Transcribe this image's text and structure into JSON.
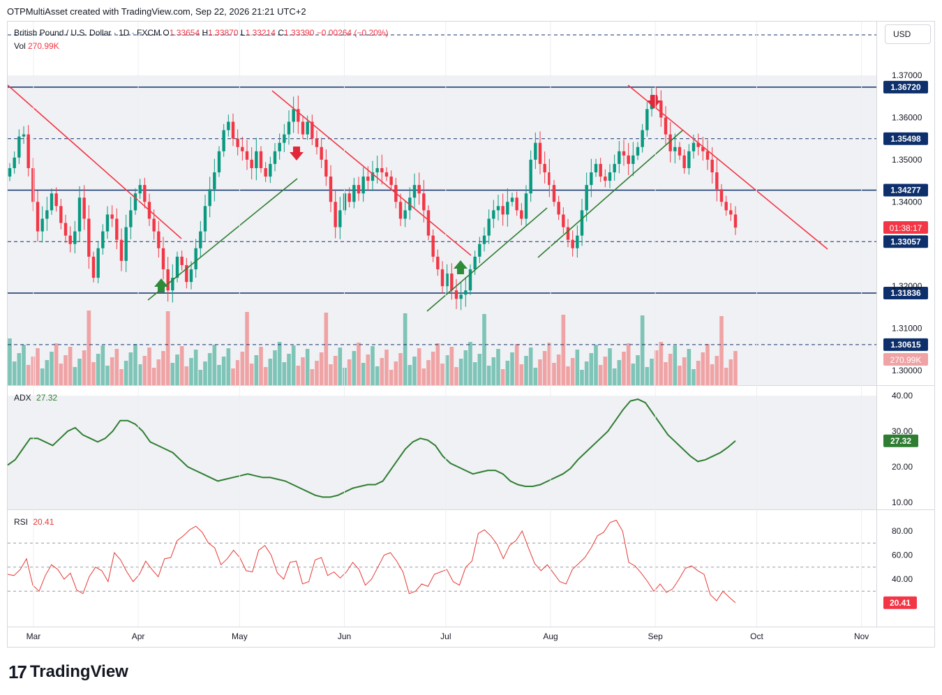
{
  "header": {
    "created_by": "OTPMultiAsset created with TradingView.com, Sep 22, 2026 21:21 UTC+2"
  },
  "legend": {
    "symbol": "British Pound / U.S. Dollar · 1D · FXCM",
    "open_label": "O",
    "open": "1.33654",
    "high_label": "H",
    "high": "1.33870",
    "low_label": "L",
    "low": "1.33214",
    "close_label": "C",
    "close": "1.33390",
    "change": "−0.00264 (−0.20%)",
    "vol_label": "Vol",
    "vol": "270.99K"
  },
  "currency": "USD",
  "adx": {
    "label": "ADX",
    "value": "27.32"
  },
  "rsi": {
    "label": "RSI",
    "value": "20.41"
  },
  "footer": {
    "brand": "TradingView"
  },
  "colors": {
    "up": "#089981",
    "down": "#f23645",
    "trend_down": "#f23645",
    "trend_up": "#2e7d32",
    "level": "#0d2f6b",
    "adx": "#2e7d32",
    "rsi": "#e53935",
    "vol_up": "#7ec4b7",
    "vol_down": "#f0a3a4"
  },
  "chart_data": [
    {
      "type": "candlestick",
      "panel": "price",
      "ylim": [
        1.296,
        1.377
      ],
      "y_ticks": [
        "1.30000",
        "1.31000",
        "1.32000",
        "1.34000",
        "1.35000",
        "1.36000",
        "1.37000"
      ],
      "x_ticks": [
        "Mar",
        "Apr",
        "May",
        "Jun",
        "Jul",
        "Aug",
        "Sep",
        "Oct",
        "Nov"
      ],
      "x_tick_dates": [
        "2026-03-01",
        "2026-04-01",
        "2026-05-01",
        "2026-06-01",
        "2026-07-01",
        "2026-08-01",
        "2026-09-01",
        "2026-10-01",
        "2026-11-01"
      ],
      "x_range": [
        "2026-02-22",
        "2026-11-05"
      ],
      "closes": [
        1.348,
        1.3505,
        1.3555,
        1.356,
        1.348,
        1.34,
        1.333,
        1.336,
        1.338,
        1.342,
        1.339,
        1.335,
        1.332,
        1.33,
        1.333,
        1.341,
        1.336,
        1.327,
        1.322,
        1.329,
        1.333,
        1.337,
        1.336,
        1.331,
        1.326,
        1.334,
        1.338,
        1.342,
        1.344,
        1.34,
        1.336,
        1.333,
        1.329,
        1.324,
        1.319,
        1.322,
        1.327,
        1.325,
        1.321,
        1.324,
        1.329,
        1.333,
        1.339,
        1.343,
        1.347,
        1.352,
        1.357,
        1.359,
        1.355,
        1.353,
        1.352,
        1.35,
        1.348,
        1.352,
        1.348,
        1.346,
        1.349,
        1.352,
        1.354,
        1.356,
        1.359,
        1.362,
        1.359,
        1.356,
        1.359,
        1.355,
        1.353,
        1.35,
        1.346,
        1.34,
        1.334,
        1.338,
        1.342,
        1.34,
        1.344,
        1.342,
        1.346,
        1.345,
        1.347,
        1.348,
        1.347,
        1.346,
        1.344,
        1.34,
        1.336,
        1.338,
        1.341,
        1.344,
        1.342,
        1.338,
        1.332,
        1.327,
        1.324,
        1.32,
        1.323,
        1.319,
        1.317,
        1.318,
        1.319,
        1.324,
        1.327,
        1.33,
        1.332,
        1.336,
        1.338,
        1.339,
        1.337,
        1.34,
        1.341,
        1.338,
        1.336,
        1.342,
        1.35,
        1.354,
        1.349,
        1.347,
        1.344,
        1.34,
        1.337,
        1.334,
        1.331,
        1.329,
        1.332,
        1.338,
        1.344,
        1.347,
        1.349,
        1.346,
        1.345,
        1.347,
        1.349,
        1.352,
        1.351,
        1.349,
        1.351,
        1.353,
        1.357,
        1.362,
        1.365,
        1.364,
        1.36,
        1.356,
        1.352,
        1.353,
        1.351,
        1.348,
        1.352,
        1.354,
        1.353,
        1.352,
        1.35,
        1.347,
        1.343,
        1.34,
        1.338,
        1.337,
        1.3339
      ],
      "levels": [
        1.3672,
        1.35498,
        1.34277,
        1.33057,
        1.31836,
        1.30615
      ],
      "level_labels": [
        "1.36720",
        "1.35498",
        "1.34277",
        "1.33057",
        "1.31836",
        "1.30615"
      ],
      "countdown": "01:38:17",
      "volume_label": "270.99K"
    },
    {
      "type": "line",
      "panel": "adx",
      "name": "ADX",
      "ylim": [
        8,
        42
      ],
      "y_ticks": [
        "10.00",
        "20.00",
        "30.00",
        "40.00"
      ],
      "values": [
        20.5,
        22,
        25,
        28,
        28,
        27,
        26,
        28,
        30,
        31,
        29,
        28,
        27,
        28,
        30,
        33,
        33,
        32,
        30,
        27,
        26,
        25,
        24,
        22,
        20,
        19,
        18,
        17,
        16,
        16.5,
        17,
        17.5,
        18,
        17.5,
        17,
        17,
        16.5,
        16,
        15,
        14,
        13,
        12,
        11.5,
        11.5,
        12,
        13,
        14,
        14.5,
        15,
        15,
        16,
        19,
        22,
        25,
        27,
        28,
        27.5,
        26,
        23,
        21,
        20,
        19,
        18,
        18.5,
        19,
        19,
        18,
        16,
        15,
        14.5,
        14.5,
        15,
        16,
        17,
        18,
        19.5,
        22,
        24,
        26,
        28,
        30,
        33,
        36,
        38.5,
        39,
        38,
        35,
        32,
        29,
        27,
        25,
        23,
        21.5,
        22,
        23,
        24,
        25.5,
        27.3
      ],
      "last_label": "27.32"
    },
    {
      "type": "line",
      "panel": "rsi",
      "name": "RSI",
      "ylim": [
        8,
        96
      ],
      "y_ticks": [
        "40.00",
        "60.00",
        "80.00"
      ],
      "bands": [
        70,
        50,
        30
      ],
      "values": [
        44,
        43,
        48,
        57,
        35,
        30,
        43,
        52,
        48,
        40,
        45,
        31,
        28,
        42,
        50,
        47,
        38,
        62,
        56,
        46,
        38,
        44,
        55,
        48,
        42,
        57,
        58,
        72,
        76,
        81,
        84,
        79,
        70,
        66,
        52,
        57,
        64,
        58,
        47,
        46,
        64,
        68,
        60,
        45,
        40,
        54,
        55,
        36,
        38,
        56,
        58,
        43,
        46,
        41,
        46,
        54,
        48,
        35,
        40,
        50,
        60,
        62,
        55,
        46,
        28,
        30,
        36,
        34,
        44,
        46,
        48,
        38,
        35,
        50,
        55,
        78,
        81,
        76,
        69,
        57,
        68,
        72,
        80,
        66,
        53,
        47,
        52,
        45,
        38,
        36,
        48,
        53,
        58,
        66,
        76,
        79,
        87,
        89,
        80,
        54,
        51,
        45,
        38,
        30,
        36,
        29,
        32,
        40,
        49,
        51,
        47,
        44,
        27,
        22,
        30,
        25,
        20.4
      ],
      "last_label": "20.41"
    }
  ]
}
